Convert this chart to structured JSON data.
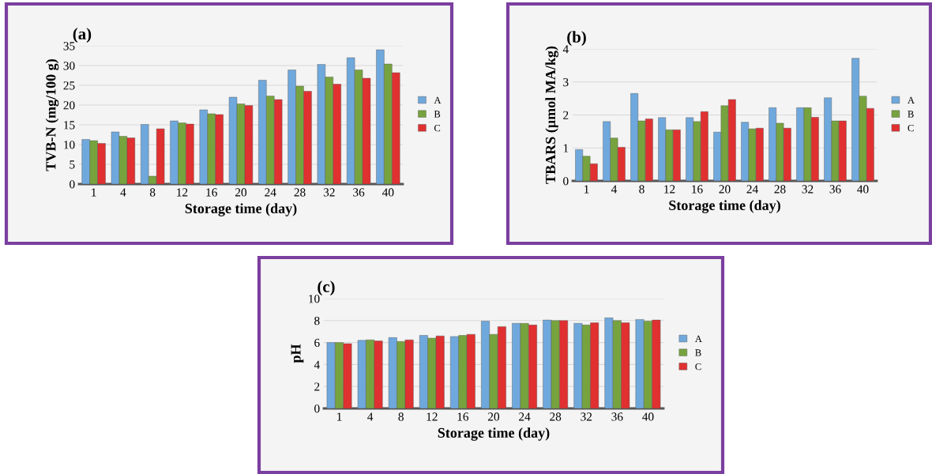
{
  "chart_data": [
    {
      "type": "bar",
      "title": "(a)",
      "xlabel": "Storage time (day)",
      "ylabel": "TVB-N (mg/100 g)",
      "categories": [
        "1",
        "4",
        "8",
        "12",
        "16",
        "20",
        "24",
        "28",
        "32",
        "36",
        "40"
      ],
      "ylim": [
        0,
        35
      ],
      "yticks": [
        0,
        5,
        10,
        15,
        20,
        25,
        30,
        35
      ],
      "grid": "y",
      "legend": "right",
      "series": [
        {
          "name": "A",
          "color": "#6fa8dc",
          "values": [
            11.3,
            13.2,
            15.1,
            16,
            18.8,
            22,
            26.3,
            28.9,
            30.3,
            32,
            34
          ]
        },
        {
          "name": "B",
          "color": "#77a33f",
          "values": [
            11,
            12.1,
            2,
            15.5,
            17.8,
            20.3,
            22.3,
            24.8,
            27.1,
            28.9,
            30.4
          ]
        },
        {
          "name": "C",
          "color": "#e03030",
          "values": [
            10.3,
            11.7,
            14,
            15.2,
            17.6,
            19.9,
            21.4,
            23.5,
            25.3,
            26.8,
            28.2
          ]
        }
      ]
    },
    {
      "type": "bar",
      "title": "(b)",
      "xlabel": "Storage time (day)",
      "ylabel": "TBARS (µmol MA/kg)",
      "categories": [
        "1",
        "4",
        "8",
        "12",
        "16",
        "20",
        "24",
        "28",
        "32",
        "36",
        "40"
      ],
      "ylim": [
        0,
        4
      ],
      "yticks": [
        0,
        1,
        2,
        3,
        4
      ],
      "grid": "y",
      "legend": "right",
      "series": [
        {
          "name": "A",
          "color": "#6fa8dc",
          "values": [
            0.95,
            1.8,
            2.65,
            1.92,
            1.92,
            1.48,
            1.78,
            2.22,
            2.22,
            2.52,
            3.72
          ]
        },
        {
          "name": "B",
          "color": "#77a33f",
          "values": [
            0.75,
            1.3,
            1.82,
            1.55,
            1.8,
            2.28,
            1.58,
            1.75,
            2.22,
            1.82,
            2.57
          ]
        },
        {
          "name": "C",
          "color": "#e03030",
          "values": [
            0.52,
            1.02,
            1.88,
            1.55,
            2.1,
            2.47,
            1.6,
            1.6,
            1.93,
            1.82,
            2.2
          ]
        }
      ]
    },
    {
      "type": "bar",
      "title": "(c)",
      "xlabel": "Storage time (day)",
      "ylabel": "pH",
      "categories": [
        "1",
        "4",
        "8",
        "12",
        "16",
        "20",
        "24",
        "28",
        "32",
        "36",
        "40"
      ],
      "ylim": [
        0,
        10
      ],
      "yticks": [
        0,
        2,
        4,
        6,
        8,
        10
      ],
      "grid": "y",
      "legend": "right",
      "series": [
        {
          "name": "A",
          "color": "#6fa8dc",
          "values": [
            6.0,
            6.2,
            6.45,
            6.65,
            6.55,
            7.95,
            7.75,
            8.05,
            7.75,
            8.25,
            8.1
          ]
        },
        {
          "name": "B",
          "color": "#77a33f",
          "values": [
            6.0,
            6.25,
            6.1,
            6.4,
            6.65,
            6.75,
            7.75,
            8.0,
            7.6,
            8.0,
            7.95
          ]
        },
        {
          "name": "C",
          "color": "#e03030",
          "values": [
            5.9,
            6.15,
            6.25,
            6.6,
            6.75,
            7.45,
            7.6,
            8.0,
            7.8,
            7.8,
            8.05
          ]
        }
      ]
    }
  ]
}
